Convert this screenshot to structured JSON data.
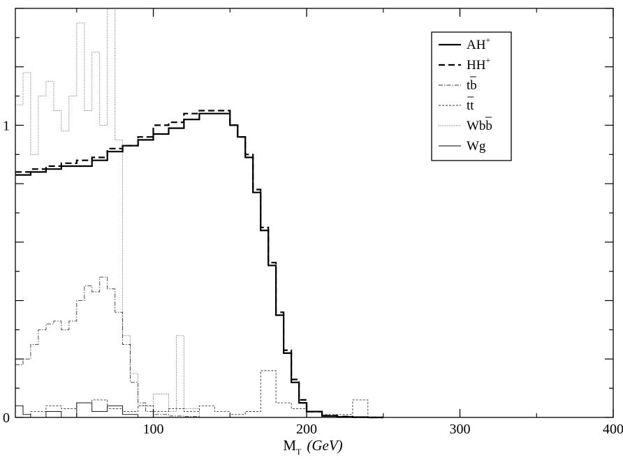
{
  "chart_data": {
    "type": "line",
    "title": "",
    "xlabel_main": "M",
    "xlabel_sub": "T",
    "xlabel_unit": "(GeV)",
    "ylabel": "",
    "xlim": [
      10,
      400
    ],
    "ylim": [
      0,
      1.4
    ],
    "x_ticks": [
      100,
      200,
      300,
      400
    ],
    "y_tick_labels": [
      {
        "value": 0,
        "label": "0"
      },
      {
        "value": 1,
        "label": "1"
      }
    ],
    "grid": false,
    "legend_position": "top-right",
    "legend": [
      {
        "text": "AH",
        "sup": "+",
        "bars": "",
        "style": "solid-thick"
      },
      {
        "text": "HH",
        "sup": "+",
        "bars": "",
        "style": "dashed-thick"
      },
      {
        "text": "tb",
        "sup": "",
        "bars": "b",
        "style": "dashdot"
      },
      {
        "text": "tt",
        "sup": "",
        "bars": "t",
        "style": "dashed-thin"
      },
      {
        "text": "Wbb",
        "sup": "",
        "bars": "b",
        "style": "dotted"
      },
      {
        "text": "Wg",
        "sup": "",
        "bars": "",
        "style": "solid-thin"
      }
    ],
    "series": [
      {
        "name": "AH+",
        "style": "solid-thick",
        "x": [
          10,
          20,
          30,
          40,
          50,
          60,
          70,
          80,
          90,
          100,
          110,
          120,
          130,
          140,
          150,
          155,
          160,
          165,
          170,
          175,
          180,
          185,
          190,
          195,
          200,
          210,
          220,
          230,
          240,
          250
        ],
        "y": [
          0.83,
          0.84,
          0.85,
          0.86,
          0.86,
          0.88,
          0.91,
          0.93,
          0.95,
          0.97,
          0.99,
          1.02,
          1.04,
          1.04,
          1.0,
          0.96,
          0.89,
          0.77,
          0.64,
          0.52,
          0.35,
          0.22,
          0.12,
          0.05,
          0.02,
          0.005,
          0.002,
          0.001,
          0.0,
          0.0
        ]
      },
      {
        "name": "HH+",
        "style": "dashed-thick",
        "x": [
          10,
          20,
          30,
          40,
          50,
          60,
          70,
          80,
          90,
          100,
          110,
          120,
          130,
          140,
          150,
          155,
          160,
          165,
          170,
          175,
          180,
          185,
          190,
          195,
          200,
          210,
          220,
          230,
          240,
          250
        ],
        "y": [
          0.84,
          0.85,
          0.86,
          0.87,
          0.88,
          0.89,
          0.92,
          0.93,
          0.96,
          1.0,
          1.01,
          1.04,
          1.05,
          1.05,
          1.0,
          0.96,
          0.9,
          0.78,
          0.65,
          0.53,
          0.36,
          0.23,
          0.13,
          0.06,
          0.02,
          0.006,
          0.003,
          0.001,
          0.0,
          0.0
        ]
      },
      {
        "name": "tb",
        "style": "dashdot",
        "x": [
          10,
          15,
          20,
          25,
          30,
          35,
          40,
          45,
          50,
          55,
          60,
          65,
          70,
          75,
          80,
          85,
          90,
          95,
          100,
          110,
          120,
          130
        ],
        "y": [
          0.18,
          0.2,
          0.25,
          0.3,
          0.32,
          0.33,
          0.3,
          0.33,
          0.4,
          0.45,
          0.43,
          0.48,
          0.44,
          0.36,
          0.25,
          0.12,
          0.05,
          0.02,
          0.01,
          0.005,
          0.003,
          0.0
        ]
      },
      {
        "name": "tt",
        "style": "dashed-thin",
        "x": [
          10,
          20,
          30,
          40,
          50,
          60,
          70,
          80,
          90,
          100,
          110,
          120,
          130,
          140,
          150,
          160,
          170,
          180,
          190,
          200,
          210,
          220,
          230,
          240
        ],
        "y": [
          0.0,
          0.02,
          0.04,
          0.03,
          0.05,
          0.06,
          0.03,
          0.02,
          0.04,
          0.02,
          0.03,
          0.02,
          0.04,
          0.02,
          0.01,
          0.02,
          0.16,
          0.05,
          0.03,
          0.02,
          0.01,
          0.01,
          0.06,
          0.0
        ]
      },
      {
        "name": "Wbb",
        "style": "dotted",
        "x": [
          10,
          15,
          20,
          25,
          30,
          35,
          40,
          45,
          50,
          55,
          60,
          65,
          70,
          75,
          80,
          85,
          90,
          100,
          110,
          115,
          120,
          130
        ],
        "y": [
          1.07,
          1.18,
          0.9,
          1.1,
          1.15,
          1.05,
          0.98,
          1.1,
          1.35,
          1.05,
          1.25,
          1.0,
          1.4,
          0.95,
          0.28,
          0.15,
          0.04,
          0.08,
          0.02,
          0.28,
          0.03,
          0.0
        ]
      },
      {
        "name": "Wg",
        "style": "solid-thin",
        "x": [
          10,
          15,
          20,
          30,
          40,
          50,
          60,
          70,
          80,
          90,
          100
        ],
        "y": [
          0.04,
          0.01,
          0.0,
          0.02,
          0.0,
          0.05,
          0.02,
          0.04,
          0.01,
          0.0,
          0.0
        ]
      }
    ]
  }
}
